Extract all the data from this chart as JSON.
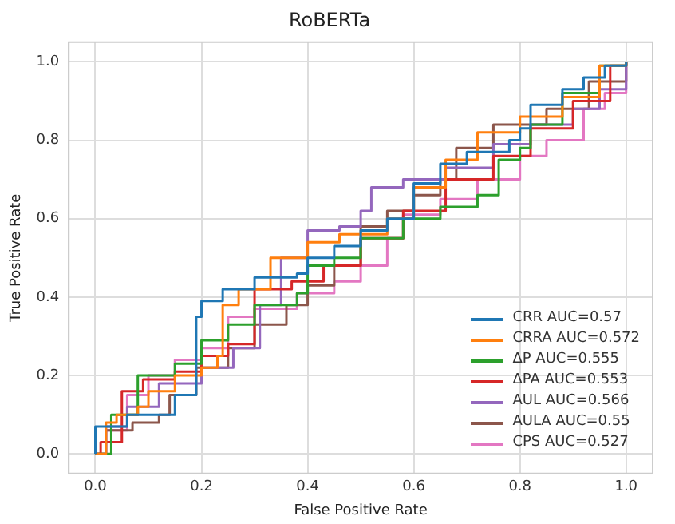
{
  "chart_data": {
    "type": "step",
    "title": "RoBERTa",
    "xlabel": "False Positive Rate",
    "ylabel": "True Positive Rate",
    "xlim": [
      -0.05,
      1.05
    ],
    "ylim": [
      -0.05,
      1.05
    ],
    "xticks": [
      {
        "value": 0,
        "label": "0.0"
      },
      0.2,
      0.4,
      0.6,
      0.8,
      {
        "value": 1,
        "label": "1.0"
      }
    ],
    "yticks": [
      {
        "value": 0,
        "label": "0.0"
      },
      0.2,
      0.4,
      0.6,
      0.8,
      {
        "value": 1,
        "label": "1.0"
      }
    ],
    "grid": true,
    "legend": "bottom right",
    "series": [
      {
        "name": "CRR AUC=0.57",
        "color": "#1f77b4",
        "x": [
          0,
          0,
          0.06,
          0.15,
          0.19,
          0.19,
          0.2,
          0.24,
          0.3,
          0.38,
          0.4,
          0.45,
          0.5,
          0.55,
          0.6,
          0.65,
          0.7,
          0.78,
          0.8,
          0.82,
          0.88,
          0.92,
          0.96,
          1
        ],
        "values": [
          0,
          0.07,
          0.1,
          0.15,
          0.2,
          0.35,
          0.39,
          0.42,
          0.45,
          0.46,
          0.5,
          0.53,
          0.57,
          0.6,
          0.69,
          0.74,
          0.77,
          0.8,
          0.83,
          0.89,
          0.93,
          0.96,
          0.99,
          1
        ]
      },
      {
        "name": "CRRA AUC=0.572",
        "color": "#ff7f0e",
        "x": [
          0,
          0.02,
          0.04,
          0.08,
          0.1,
          0.15,
          0.2,
          0.23,
          0.24,
          0.27,
          0.33,
          0.4,
          0.46,
          0.55,
          0.6,
          0.66,
          0.72,
          0.8,
          0.88,
          0.95,
          1
        ],
        "values": [
          0,
          0.08,
          0.1,
          0.12,
          0.16,
          0.2,
          0.22,
          0.25,
          0.38,
          0.42,
          0.5,
          0.54,
          0.56,
          0.6,
          0.68,
          0.75,
          0.82,
          0.86,
          0.91,
          0.99,
          1
        ]
      },
      {
        "name": "ΔP AUC=0.555",
        "color": "#2ca02c",
        "x": [
          0,
          0.03,
          0.08,
          0.15,
          0.2,
          0.25,
          0.3,
          0.38,
          0.4,
          0.45,
          0.5,
          0.58,
          0.65,
          0.72,
          0.76,
          0.8,
          0.82,
          0.88,
          0.95,
          1
        ],
        "values": [
          0,
          0.1,
          0.2,
          0.23,
          0.29,
          0.33,
          0.38,
          0.41,
          0.48,
          0.5,
          0.55,
          0.6,
          0.63,
          0.66,
          0.75,
          0.78,
          0.84,
          0.92,
          0.99,
          1
        ]
      },
      {
        "name": "ΔPA AUC=0.553",
        "color": "#d62728",
        "x": [
          0,
          0.01,
          0.05,
          0.09,
          0.15,
          0.2,
          0.25,
          0.3,
          0.3,
          0.37,
          0.43,
          0.5,
          0.58,
          0.66,
          0.75,
          0.82,
          0.9,
          0.97,
          1
        ],
        "values": [
          0,
          0.03,
          0.16,
          0.19,
          0.21,
          0.25,
          0.28,
          0.3,
          0.42,
          0.44,
          0.48,
          0.55,
          0.62,
          0.7,
          0.76,
          0.83,
          0.9,
          0.99,
          1
        ]
      },
      {
        "name": "AUL AUC=0.566",
        "color": "#9467bd",
        "x": [
          0,
          0.02,
          0.06,
          0.12,
          0.2,
          0.23,
          0.26,
          0.31,
          0.35,
          0.4,
          0.46,
          0.5,
          0.52,
          0.58,
          0.66,
          0.75,
          0.82,
          0.9,
          0.95,
          1
        ],
        "values": [
          0,
          0.07,
          0.12,
          0.18,
          0.22,
          0.22,
          0.27,
          0.38,
          0.5,
          0.57,
          0.58,
          0.62,
          0.68,
          0.7,
          0.73,
          0.79,
          0.84,
          0.88,
          0.93,
          1
        ]
      },
      {
        "name": "AULA AUC=0.55",
        "color": "#8c564b",
        "x": [
          0,
          0.02,
          0.07,
          0.12,
          0.14,
          0.19,
          0.25,
          0.3,
          0.36,
          0.4,
          0.45,
          0.5,
          0.55,
          0.6,
          0.65,
          0.68,
          0.75,
          0.85,
          0.93,
          1
        ],
        "values": [
          0,
          0.06,
          0.08,
          0.1,
          0.15,
          0.22,
          0.27,
          0.33,
          0.38,
          0.43,
          0.48,
          0.58,
          0.62,
          0.66,
          0.7,
          0.78,
          0.84,
          0.88,
          0.95,
          1
        ]
      },
      {
        "name": "CPS AUC=0.527",
        "color": "#e377c2",
        "x": [
          0,
          0.02,
          0.06,
          0.1,
          0.15,
          0.2,
          0.25,
          0.3,
          0.38,
          0.45,
          0.5,
          0.55,
          0.58,
          0.65,
          0.72,
          0.8,
          0.85,
          0.92,
          0.96,
          1
        ],
        "values": [
          0,
          0.06,
          0.15,
          0.2,
          0.24,
          0.27,
          0.35,
          0.37,
          0.41,
          0.44,
          0.48,
          0.55,
          0.61,
          0.65,
          0.7,
          0.76,
          0.8,
          0.88,
          0.92,
          1
        ]
      }
    ]
  }
}
